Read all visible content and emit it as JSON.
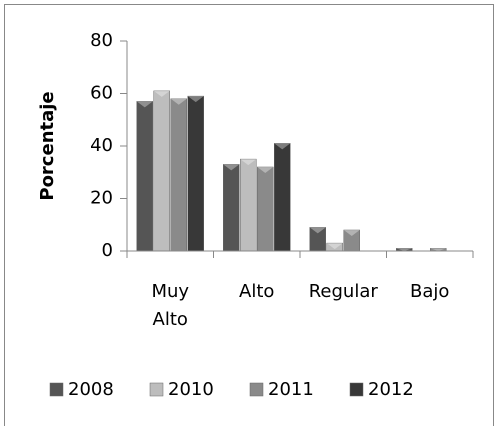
{
  "chart_data": {
    "type": "bar",
    "y_label": "Porcentaje",
    "categories": [
      "Muy Alto",
      "Alto",
      "Regular",
      "Bajo"
    ],
    "series": [
      {
        "name": "2008",
        "color": "#555555",
        "values": [
          57,
          33,
          9,
          1
        ]
      },
      {
        "name": "2010",
        "color": "#bdbdbd",
        "values": [
          61,
          35,
          3,
          0
        ]
      },
      {
        "name": "2011",
        "color": "#8a8a8a",
        "values": [
          58,
          32,
          8,
          1
        ]
      },
      {
        "name": "2012",
        "color": "#383838",
        "values": [
          59,
          41,
          0,
          0
        ]
      }
    ],
    "ylim": [
      0,
      80
    ],
    "yticks": [
      0,
      20,
      40,
      60,
      80
    ],
    "legend": "bottom"
  }
}
